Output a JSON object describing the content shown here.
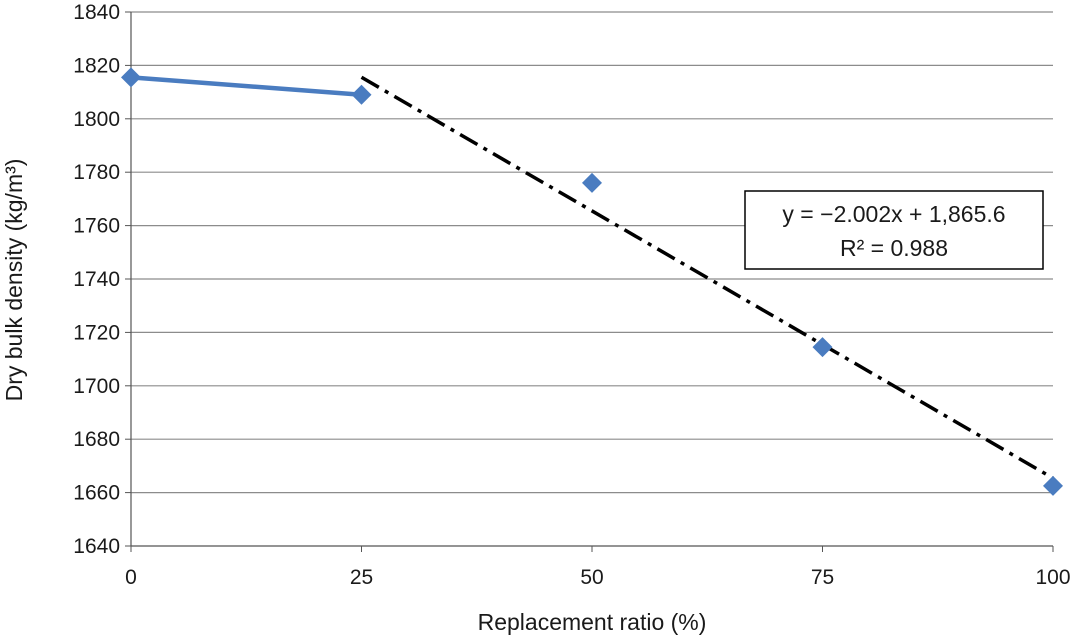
{
  "chart_data": {
    "type": "line",
    "xlabel": "Replacement ratio (%)",
    "ylabel": "Dry bulk density (kg/m³)",
    "xlim": [
      0,
      100
    ],
    "ylim": [
      1640,
      1840
    ],
    "x_ticks": [
      "0",
      "25",
      "50",
      "75",
      "100"
    ],
    "y_ticks": [
      "1640",
      "1660",
      "1680",
      "1700",
      "1720",
      "1740",
      "1760",
      "1780",
      "1800",
      "1820",
      "1840"
    ],
    "grid": "horizontal",
    "series": [
      {
        "points": [
          {
            "x": 0,
            "y": 1815.5
          },
          {
            "x": 25,
            "y": 1809
          },
          {
            "x": 50,
            "y": 1776
          },
          {
            "x": 75,
            "y": 1714.5
          },
          {
            "x": 100,
            "y": 1662.5
          }
        ],
        "line_segment_x": [
          0,
          25
        ],
        "color": "#4a7cc0",
        "marker": "diamond"
      }
    ],
    "trendline": {
      "slope": -2.002,
      "intercept": 1865.6,
      "x_range": [
        25,
        100
      ],
      "style": "dash-dot",
      "color": "#000000"
    },
    "annotation": {
      "line1": "y = −2.002x + 1,865.6",
      "line2": "R² = 0.988"
    }
  }
}
